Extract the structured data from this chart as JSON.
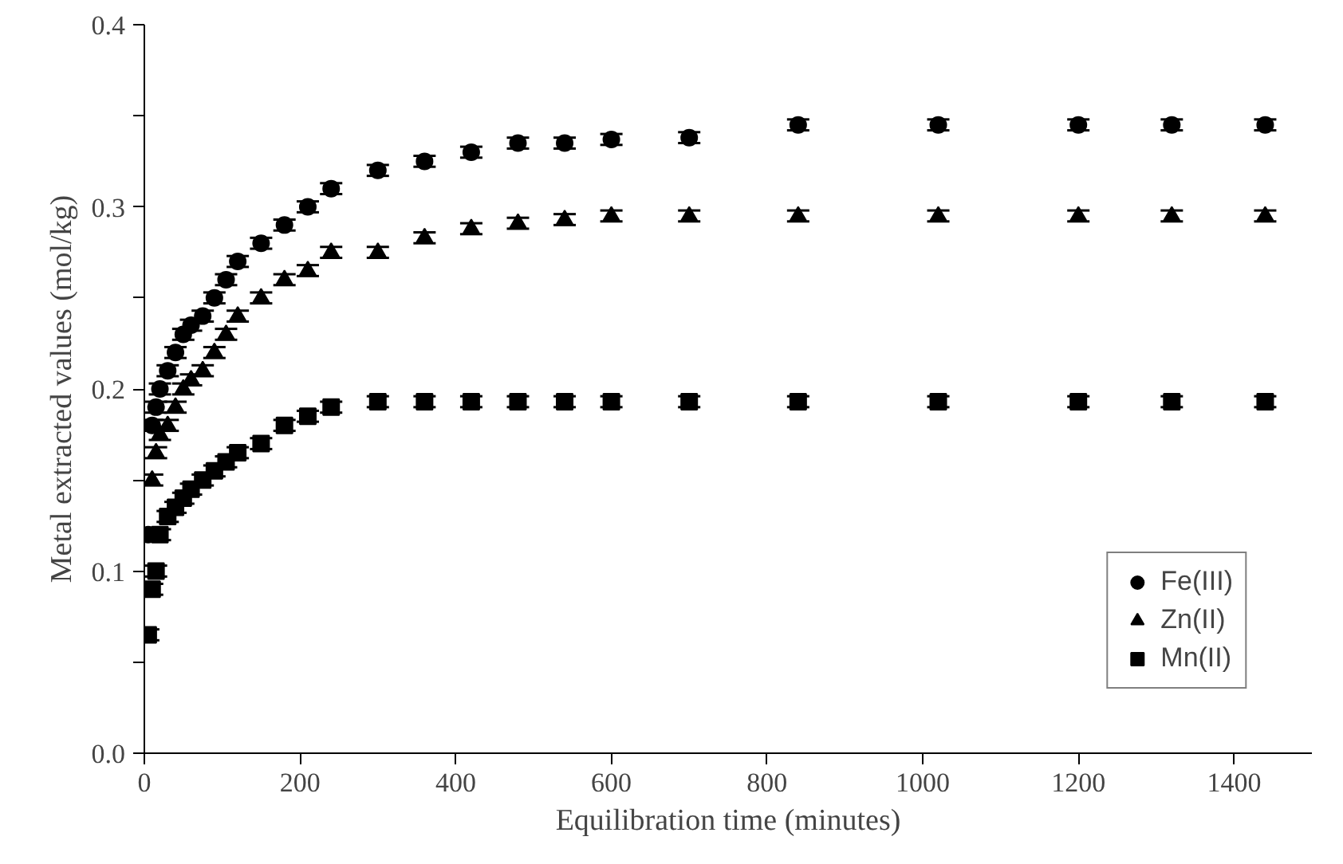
{
  "chart_data": {
    "type": "scatter",
    "xlabel": "Equilibration time (minutes)",
    "ylabel": "Metal extracted values (mol/kg)",
    "x": [
      5,
      10,
      15,
      20,
      30,
      40,
      50,
      60,
      75,
      90,
      105,
      120,
      150,
      180,
      210,
      240,
      300,
      360,
      420,
      480,
      540,
      600,
      700,
      840,
      1020,
      1200,
      1320,
      1440
    ],
    "series": [
      {
        "name": "Fe(III)",
        "color": "#000000",
        "marker": "circle",
        "values": [
          0.12,
          0.18,
          0.19,
          0.2,
          0.21,
          0.22,
          0.23,
          0.235,
          0.24,
          0.25,
          0.26,
          0.27,
          0.28,
          0.29,
          0.3,
          0.31,
          0.32,
          0.325,
          0.33,
          0.335,
          0.335,
          0.337,
          0.338,
          0.345,
          0.345,
          0.345,
          0.345,
          0.345
        ],
        "errors": [
          0.003,
          0.003,
          0.003,
          0.003,
          0.003,
          0.003,
          0.003,
          0.003,
          0.003,
          0.003,
          0.003,
          0.003,
          0.003,
          0.003,
          0.003,
          0.003,
          0.003,
          0.003,
          0.003,
          0.003,
          0.003,
          0.003,
          0.003,
          0.003,
          0.003,
          0.003,
          0.003,
          0.003
        ]
      },
      {
        "name": "Zn(II)",
        "color": "#000000",
        "marker": "triangle",
        "values": [
          null,
          0.15,
          0.165,
          0.175,
          0.18,
          0.19,
          0.2,
          0.205,
          0.21,
          0.22,
          0.23,
          0.24,
          0.25,
          0.26,
          0.265,
          0.275,
          0.275,
          0.283,
          0.288,
          0.291,
          0.293,
          0.295,
          0.295,
          0.295,
          0.295,
          0.295,
          0.295,
          0.295
        ],
        "errors": [
          null,
          0.003,
          0.003,
          0.003,
          0.003,
          0.003,
          0.003,
          0.003,
          0.003,
          0.003,
          0.003,
          0.003,
          0.003,
          0.003,
          0.003,
          0.003,
          0.003,
          0.003,
          0.003,
          0.003,
          0.003,
          0.003,
          0.003,
          0.003,
          0.003,
          0.003,
          0.003,
          0.003
        ]
      },
      {
        "name": "Mn(II)",
        "color": "#000000",
        "marker": "square",
        "values": [
          0.065,
          0.09,
          0.1,
          0.12,
          0.13,
          0.135,
          0.14,
          0.145,
          0.15,
          0.155,
          0.16,
          0.165,
          0.17,
          0.18,
          0.185,
          0.19,
          0.193,
          0.193,
          0.193,
          0.193,
          0.193,
          0.193,
          0.193,
          0.193,
          0.193,
          0.193,
          0.193,
          0.193
        ],
        "errors": [
          0.003,
          0.003,
          0.003,
          0.003,
          0.003,
          0.003,
          0.003,
          0.003,
          0.003,
          0.003,
          0.003,
          0.003,
          0.003,
          0.003,
          0.003,
          0.003,
          0.003,
          0.003,
          0.003,
          0.003,
          0.003,
          0.003,
          0.003,
          0.003,
          0.003,
          0.003,
          0.003,
          0.003
        ]
      }
    ],
    "xlim": [
      0,
      1500
    ],
    "ylim": [
      0,
      0.4
    ],
    "xticks": [
      0,
      200,
      400,
      600,
      800,
      1000,
      1200,
      1400
    ],
    "yticks": [
      {
        "value": 0.0,
        "label": "0.0"
      },
      {
        "value": 0.05,
        "label": null
      },
      {
        "value": 0.1,
        "label": "0.1"
      },
      {
        "value": 0.15,
        "label": null
      },
      {
        "value": 0.2,
        "label": "0.2"
      },
      {
        "value": 0.25,
        "label": null
      },
      {
        "value": 0.3,
        "label": "0.3"
      },
      {
        "value": 0.35,
        "label": null
      },
      {
        "value": 0.4,
        "label": "0.4"
      }
    ],
    "grid": false,
    "legend": "bottom right"
  }
}
